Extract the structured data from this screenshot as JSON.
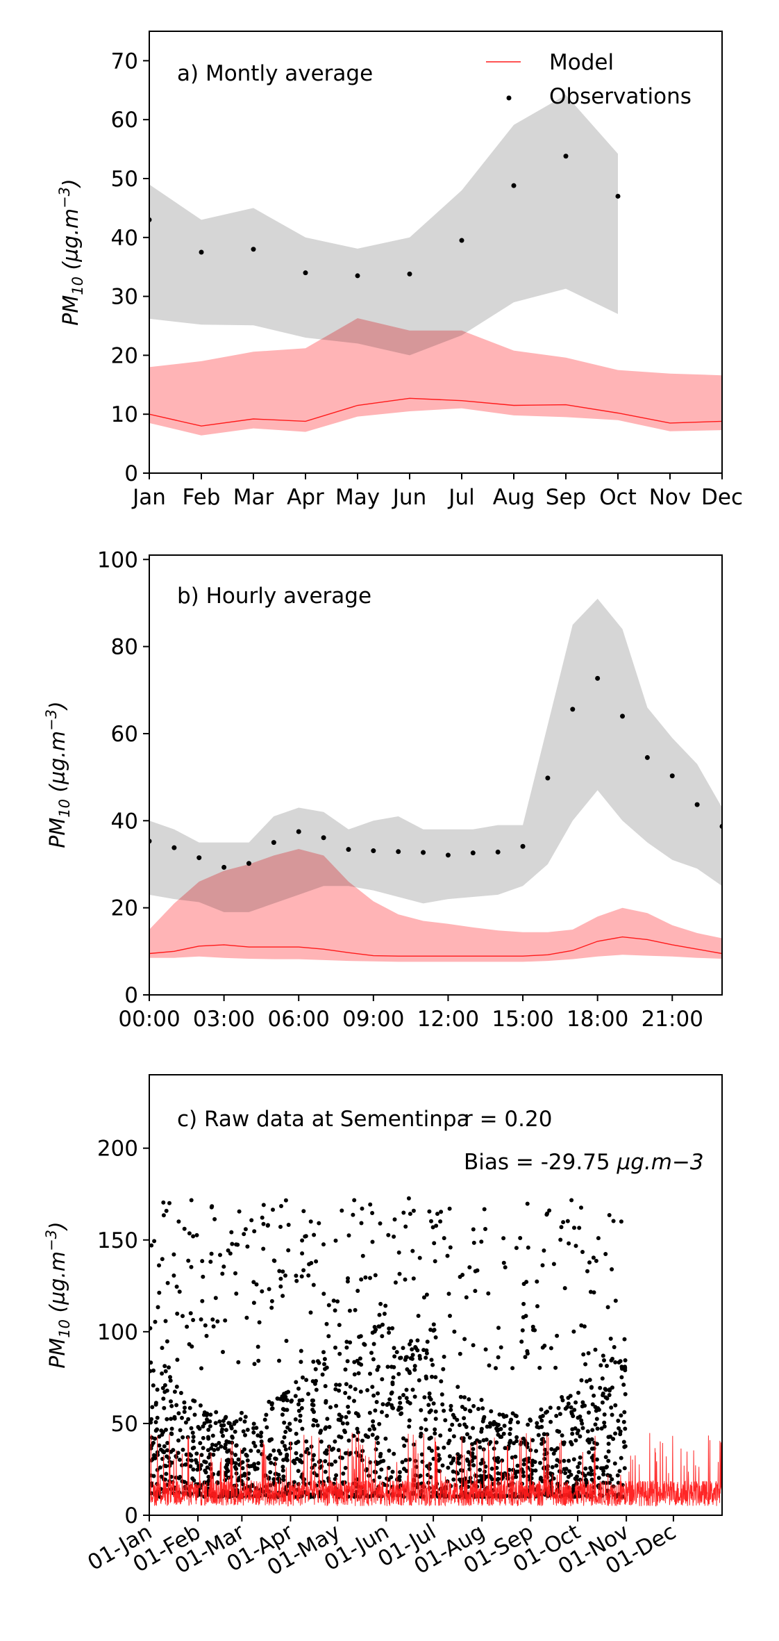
{
  "chart_data": [
    {
      "type": "line",
      "title": "a) Montly average",
      "ylabel": "PM10 (µg.m−3)",
      "ylim": [
        0,
        75
      ],
      "yticks": [
        0,
        10,
        20,
        30,
        40,
        50,
        60,
        70
      ],
      "categories": [
        "Jan",
        "Feb",
        "Mar",
        "Apr",
        "May",
        "Jun",
        "Jul",
        "Aug",
        "Sep",
        "Oct",
        "Nov",
        "Dec"
      ],
      "legend": {
        "placement": "top-right",
        "model_label": "Model",
        "obs_label": "Observations"
      },
      "colors": {
        "model_line": "#ff1a1a",
        "model_band": "#ffb3b5",
        "obs_band": "#d6d6d6",
        "obs_marker": "#000000"
      },
      "series": [
        {
          "name": "Model",
          "values": [
            10.0,
            8.0,
            9.2,
            8.8,
            11.5,
            12.7,
            12.3,
            11.5,
            11.6,
            10.2,
            8.5,
            8.8
          ],
          "band_low": [
            8.5,
            6.4,
            7.6,
            7.0,
            9.6,
            10.5,
            11.0,
            9.8,
            9.5,
            9.0,
            7.1,
            7.3
          ],
          "band_high": [
            18.0,
            19.0,
            20.6,
            21.2,
            26.3,
            24.2,
            24.2,
            20.8,
            19.6,
            17.5,
            16.9,
            16.6
          ]
        },
        {
          "name": "Observations",
          "values": [
            43.0,
            37.5,
            38.0,
            34.0,
            33.5,
            33.8,
            39.5,
            48.8,
            53.8,
            47.0,
            null,
            null
          ],
          "band_low": [
            26.2,
            25.2,
            25.1,
            23.0,
            22.0,
            20.0,
            23.4,
            29.0,
            31.3,
            27.0,
            null,
            null
          ],
          "band_high": [
            49.0,
            43.0,
            45.0,
            40.0,
            38.1,
            40.0,
            48.0,
            59.1,
            64.2,
            54.2,
            null,
            null
          ]
        }
      ]
    },
    {
      "type": "line",
      "title": "b) Hourly average",
      "ylabel": "PM10 (µg.m−3)",
      "ylim": [
        0,
        101
      ],
      "yticks": [
        0,
        20,
        40,
        60,
        80,
        100
      ],
      "xlim": [
        0,
        23
      ],
      "xtick_labels": [
        "00:00",
        "03:00",
        "06:00",
        "09:00",
        "12:00",
        "15:00",
        "18:00",
        "21:00"
      ],
      "x": [
        0,
        1,
        2,
        3,
        4,
        5,
        6,
        7,
        8,
        9,
        10,
        11,
        12,
        13,
        14,
        15,
        16,
        17,
        18,
        19,
        20,
        21,
        22,
        23
      ],
      "colors": {
        "model_line": "#ff1a1a",
        "model_band": "#ffb3b5",
        "obs_band": "#d6d6d6",
        "obs_marker": "#000000"
      },
      "series": [
        {
          "name": "Model",
          "values": [
            9.5,
            10.0,
            11.2,
            11.5,
            11.0,
            11.0,
            11.0,
            10.5,
            9.7,
            9.0,
            8.9,
            8.9,
            8.9,
            8.9,
            8.9,
            8.9,
            9.2,
            10.2,
            12.3,
            13.3,
            12.7,
            11.5,
            10.5,
            9.5
          ],
          "band_low": [
            8.5,
            8.5,
            8.8,
            8.5,
            8.3,
            8.2,
            8.2,
            8.0,
            7.8,
            7.7,
            7.6,
            7.6,
            7.6,
            7.6,
            7.6,
            7.6,
            7.8,
            8.2,
            8.8,
            9.2,
            9.0,
            8.8,
            8.5,
            8.3
          ],
          "band_high": [
            15.0,
            21.0,
            26.0,
            28.5,
            30.0,
            32.0,
            33.5,
            32.0,
            26.0,
            21.5,
            18.5,
            17.0,
            16.3,
            15.5,
            14.8,
            14.4,
            14.4,
            15.0,
            18.0,
            20.0,
            18.8,
            16.0,
            14.2,
            13.0
          ]
        },
        {
          "name": "Observations",
          "values": [
            35.3,
            33.8,
            31.5,
            29.3,
            30.2,
            35.0,
            37.5,
            36.1,
            33.4,
            33.1,
            32.9,
            32.7,
            32.1,
            32.6,
            32.8,
            34.1,
            49.8,
            65.6,
            72.7,
            64.0,
            54.5,
            50.3,
            43.7,
            38.7
          ],
          "band_low": [
            23.0,
            22.0,
            21.3,
            19.0,
            19.0,
            21.0,
            23.0,
            25.0,
            25.0,
            24.0,
            22.5,
            21.0,
            22.0,
            22.5,
            23.0,
            25.0,
            30.0,
            40.0,
            47.0,
            40.0,
            35.0,
            31.0,
            29.0,
            25.0
          ],
          "band_high": [
            40.0,
            38.0,
            35.0,
            35.0,
            35.0,
            41.0,
            43.0,
            42.0,
            38.0,
            40.0,
            41.0,
            38.0,
            38.0,
            38.0,
            39.0,
            39.0,
            62.0,
            85.0,
            91.0,
            84.0,
            66.0,
            59.0,
            53.0,
            43.0
          ]
        }
      ]
    },
    {
      "type": "scatter",
      "title": "c) Raw data at Sementinpa",
      "stats": {
        "r_label": "r = 0.20",
        "bias_prefix": "Bias = -29.75 ",
        "bias_unit": "µg.m−3"
      },
      "ylabel": "PM10 (µg.m−3)",
      "ylim": [
        0,
        240
      ],
      "yticks": [
        0,
        50,
        100,
        150,
        200
      ],
      "xlim_days": [
        0,
        365
      ],
      "xtick_labels": [
        "01-Jan",
        "01-Feb",
        "01-Mar",
        "01-Apr",
        "01-May",
        "01-Jun",
        "01-Jul",
        "01-Aug",
        "01-Sep",
        "01-Oct",
        "01-Nov",
        "01-Dec"
      ],
      "xtick_days": [
        0,
        31,
        59,
        90,
        120,
        151,
        181,
        212,
        243,
        273,
        304,
        334
      ],
      "observation_period_days": [
        0,
        304
      ],
      "model_period_days": [
        0,
        365
      ],
      "observations_typical_range": [
        10,
        80
      ],
      "observations_max": 173,
      "model_typical_range": [
        0,
        30
      ],
      "colors": {
        "model_line": "#ff1a1a",
        "obs_marker": "#000000"
      },
      "series": [
        {
          "name": "Model"
        },
        {
          "name": "Observations"
        }
      ]
    }
  ]
}
